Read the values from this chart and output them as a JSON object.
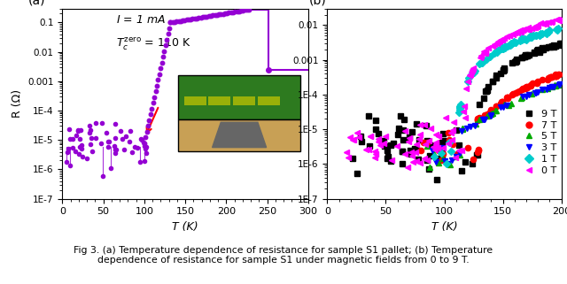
{
  "fig_width": 6.4,
  "fig_height": 3.21,
  "dpi": 100,
  "background": "#ffffff",
  "panel_a": {
    "label": "(a)",
    "xlabel": "T (K)",
    "ylabel": "R (Ω)",
    "xlim": [
      0,
      300
    ],
    "ylim_log": [
      1e-07,
      0.3
    ],
    "color": "#9400D3",
    "Tc": 110,
    "yticks": [
      1e-07,
      1e-06,
      1e-05,
      0.0001,
      0.001,
      0.01,
      0.1
    ],
    "yticklabels": [
      "1E-7",
      "1E-6",
      "1E-5",
      "1E-4",
      "0.001",
      "0.01",
      "0.1"
    ]
  },
  "panel_b": {
    "label": "(b)",
    "xlabel": "T (K)",
    "xlim": [
      0,
      200
    ],
    "ylim_log": [
      1e-07,
      0.03
    ],
    "legend": [
      "9 T",
      "7 T",
      "5 T",
      "3 T",
      "1 T",
      "0 T"
    ],
    "legend_colors": [
      "#000000",
      "#ff0000",
      "#00aa00",
      "#0000ff",
      "#00cccc",
      "#ff00ff"
    ],
    "legend_markers": [
      "s",
      "o",
      "^",
      "v",
      "D",
      "<"
    ],
    "yticks": [
      1e-07,
      1e-06,
      1e-05,
      0.0001,
      0.001,
      0.01
    ],
    "yticklabels": [
      "1E-7",
      "1E-6",
      "1E-5",
      "1E-4",
      "0.001",
      "0.01"
    ]
  },
  "caption": "Fig 3. (a) Temperature dependence of resistance for sample S1 pallet; (b) Temperature\ndependence of resistance for sample S1 under magnetic fields from 0 to 9 T."
}
